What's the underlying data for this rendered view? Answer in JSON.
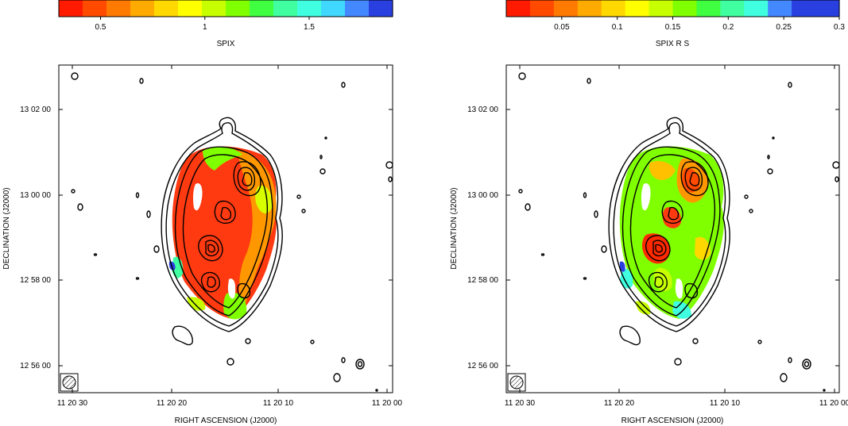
{
  "chart_data": [
    {
      "type": "heatmap",
      "panel": "left",
      "colorbar": {
        "label": "SPIX",
        "range": [
          0.3,
          1.9
        ],
        "ticks": [
          "0.5",
          "1",
          "1.5"
        ],
        "tick_values": [
          0.5,
          1.0,
          1.5
        ],
        "colors": [
          "#ff1a00",
          "#ff4a00",
          "#ff7a00",
          "#ffaa00",
          "#ffd800",
          "#ffff00",
          "#c8ff00",
          "#80ff00",
          "#40ff40",
          "#40ffa0",
          "#40ffe0",
          "#40d8ff",
          "#4488ff",
          "#2a3fe0"
        ]
      },
      "xlabel": "RIGHT ASCENSION  (J2000)",
      "ylabel": "DECLINATION  (J2000)",
      "x_ticks": [
        "11 20 30",
        "11 20 20",
        "11 20 10",
        "11 20 00"
      ],
      "y_ticks": [
        "13 02 00",
        "13 00 00",
        "12 58 00",
        "12 56 00"
      ],
      "beam": "hatched ellipse, lower-left",
      "contours": "black, radio intensity levels"
    },
    {
      "type": "heatmap",
      "panel": "right",
      "colorbar": {
        "label": "SPIX R   S",
        "range": [
          0.0,
          0.3
        ],
        "ticks": [
          "0.05",
          "0.1",
          "0.15",
          "0.2",
          "0.25",
          "0.3"
        ],
        "tick_values": [
          0.05,
          0.1,
          0.15,
          0.2,
          0.25,
          0.3
        ],
        "colors": [
          "#ff1a00",
          "#ff4a00",
          "#ff7a00",
          "#ffaa00",
          "#ffd800",
          "#ffff00",
          "#c8ff00",
          "#80ff00",
          "#40ff40",
          "#40ffa0",
          "#40ffe0",
          "#4488ff",
          "#2a3fe0",
          "#2a3fe0"
        ]
      },
      "xlabel": "RIGHT ASCENSION  (J2000)",
      "ylabel": "DECLINATION  (J2000)",
      "x_ticks": [
        "11 20 30",
        "11 20 20",
        "11 20 10",
        "11 20 00"
      ],
      "y_ticks": [
        "13 02 00",
        "13 00 00",
        "12 58 00",
        "12 56 00"
      ],
      "beam": "hatched ellipse, lower-left",
      "contours": "black, radio intensity levels"
    }
  ]
}
